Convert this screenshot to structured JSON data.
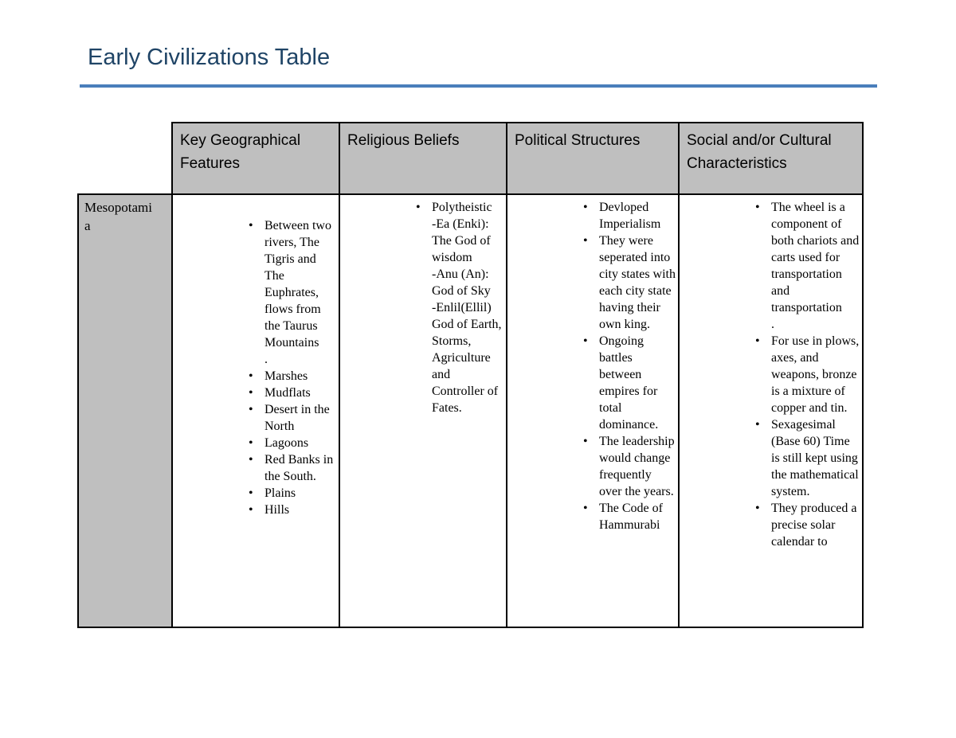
{
  "page": {
    "title": "Early Civilizations Table"
  },
  "colors": {
    "title_text": "#1f4466",
    "title_rule": "#4a7ebb",
    "header_cell_bg": "#bfbfbf",
    "table_border": "#000000"
  },
  "table": {
    "headers": [
      "Key Geographical Features",
      "Religious Beliefs",
      "Political Structures",
      "Social and/or Cultural Characteristics"
    ],
    "row_label": "Mesopotamia",
    "cells": {
      "geographical": [
        "Between two rivers, The Tigris and The Euphrates, flows from the Taurus Mountains\n.",
        "Marshes",
        "Mudflats",
        "Desert in the North",
        "Lagoons",
        "Red Banks in the South.",
        "Plains",
        "Hills"
      ],
      "religious": [
        "Polytheistic\n-Ea (Enki): The God of wisdom\n-Anu (An): God of Sky\n-Enlil(Ellil) God of Earth, Storms, Agriculture and Controller of Fates."
      ],
      "political": [
        "Devloped Imperialism",
        "They were seperated into city states with each city state having their own king.",
        "Ongoing battles between empires for total dominance.",
        "The leadership would change frequently over the years.",
        "The Code of Hammurabi"
      ],
      "social": [
        "The wheel is a component of both chariots and carts used for transportation and transportation\n.",
        "For use in plows, axes, and weapons, bronze is a mixture of copper and tin.",
        "Sexagesimal (Base 60) Time is still kept using the mathematical system.",
        "They produced a precise solar calendar to"
      ]
    }
  }
}
